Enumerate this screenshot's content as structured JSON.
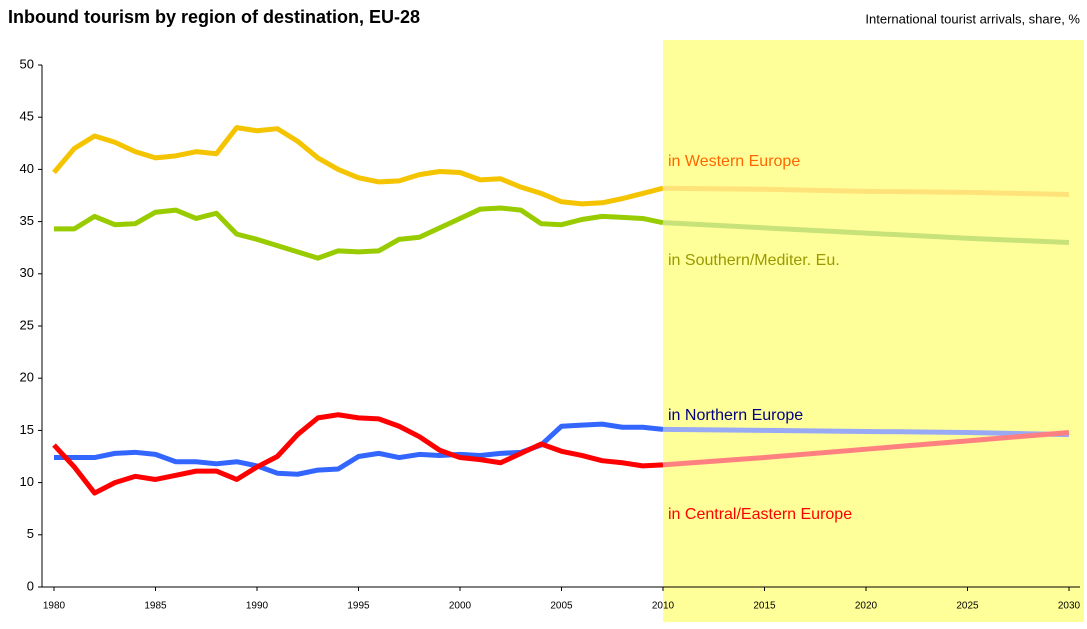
{
  "chart_data": {
    "type": "line",
    "title": "Inbound tourism by region of destination, EU-28",
    "subtitle": "International tourist arrivals, share, %",
    "x": [
      1980,
      1981,
      1982,
      1983,
      1984,
      1985,
      1986,
      1987,
      1988,
      1989,
      1990,
      1991,
      1992,
      1993,
      1994,
      1995,
      1996,
      1997,
      1998,
      1999,
      2000,
      2001,
      2002,
      2003,
      2004,
      2005,
      2006,
      2007,
      2008,
      2009,
      2010,
      2015,
      2020,
      2025,
      2030
    ],
    "forecast_start": 2010,
    "shade_color": "#ffff99",
    "series": [
      {
        "name": "in Western Europe",
        "color": "#f5c400",
        "forecast_color": "#ffe27a",
        "label_color": "#ff6600",
        "values": [
          39.7,
          42,
          43.2,
          42.6,
          41.7,
          41.1,
          41.3,
          41.7,
          41.5,
          44,
          43.7,
          43.9,
          42.7,
          41.1,
          40,
          39.2,
          38.8,
          38.9,
          39.5,
          39.8,
          39.7,
          39,
          39.1,
          38.3,
          37.7,
          36.9,
          36.7,
          36.8,
          37.2,
          37.7,
          38.2,
          38.1,
          37.9,
          37.8,
          37.6
        ]
      },
      {
        "name": "in Southern/Mediter. Eu.",
        "color": "#99cc00",
        "forecast_color": "#c8e27a",
        "label_color": "#999900",
        "values": [
          34.3,
          34.3,
          35.5,
          34.7,
          34.8,
          35.9,
          36.1,
          35.3,
          35.8,
          33.8,
          33.3,
          32.7,
          32.1,
          31.5,
          32.2,
          32.1,
          32.2,
          33.3,
          33.5,
          34.4,
          35.3,
          36.2,
          36.3,
          36.1,
          34.8,
          34.7,
          35.2,
          35.5,
          35.4,
          35.3,
          34.9,
          34.4,
          33.9,
          33.4,
          33
        ]
      },
      {
        "name": "in Northern Europe",
        "color": "#3366ff",
        "forecast_color": "#99aaf5",
        "label_color": "#000080",
        "values": [
          12.4,
          12.4,
          12.4,
          12.8,
          12.9,
          12.7,
          12,
          12,
          11.8,
          12,
          11.6,
          10.9,
          10.8,
          11.2,
          11.3,
          12.5,
          12.8,
          12.4,
          12.7,
          12.6,
          12.7,
          12.6,
          12.8,
          12.9,
          13.6,
          15.4,
          15.5,
          15.6,
          15.3,
          15.3,
          15.1,
          15,
          14.9,
          14.8,
          14.6
        ]
      },
      {
        "name": "in Central/Eastern Europe",
        "color": "#ff0000",
        "forecast_color": "#ff8080",
        "label_color": "#ff0000",
        "values": [
          13.6,
          11.5,
          9,
          10,
          10.6,
          10.3,
          10.7,
          11.1,
          11.1,
          10.3,
          11.5,
          12.5,
          14.6,
          16.2,
          16.5,
          16.2,
          16.1,
          15.4,
          14.4,
          13.1,
          12.4,
          12.2,
          11.9,
          12.8,
          13.7,
          13,
          12.6,
          12.1,
          11.9,
          11.6,
          11.7,
          12.4,
          13.2,
          14,
          14.8
        ]
      }
    ],
    "xlim": [
      1980,
      2030
    ],
    "xticks": [
      1980,
      1985,
      1990,
      1995,
      2000,
      2005,
      2010,
      2015,
      2020,
      2025,
      2030
    ],
    "ylim": [
      0,
      50
    ],
    "yticks": [
      0,
      5,
      10,
      15,
      20,
      25,
      30,
      35,
      40,
      45,
      50
    ]
  }
}
